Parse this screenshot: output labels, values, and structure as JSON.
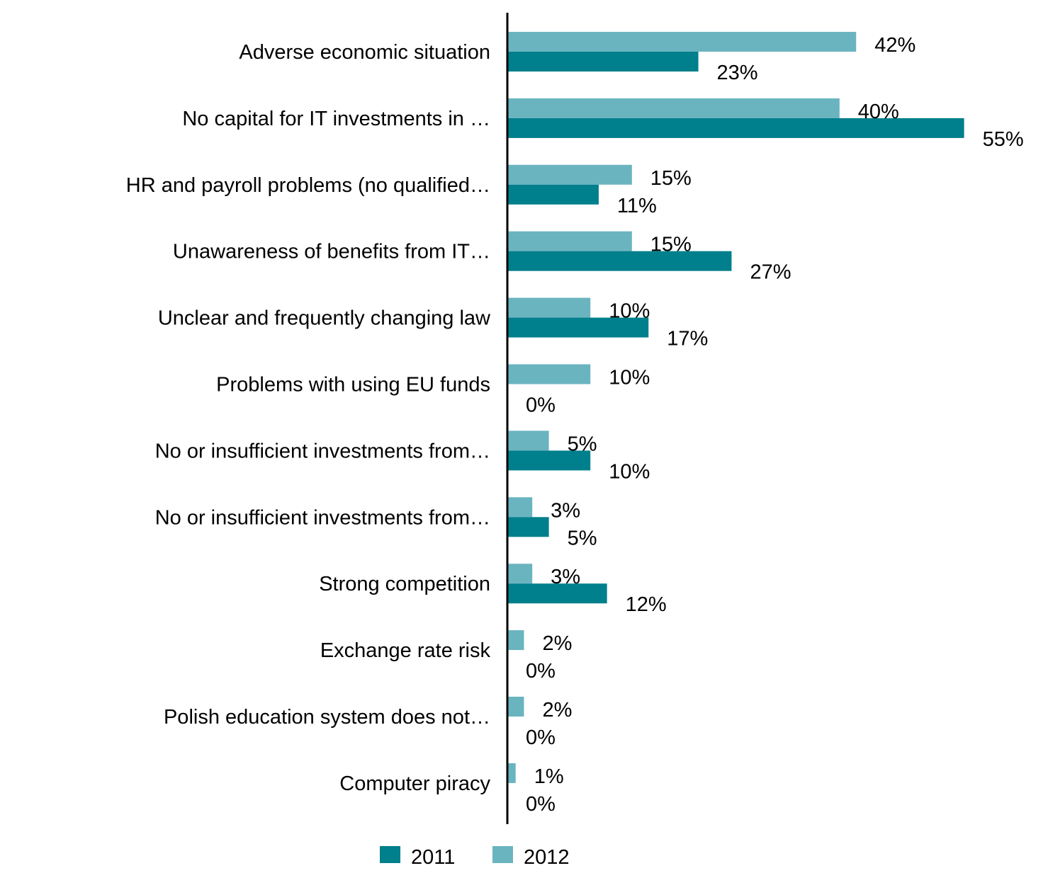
{
  "chart_data": {
    "type": "bar",
    "orientation": "horizontal",
    "categories": [
      "Adverse economic situation",
      "No capital for IT investments in …",
      "HR and payroll problems (no qualified…",
      "Unawareness of benefits from IT…",
      "Unclear and frequently changing law",
      "Problems with using EU funds",
      "No or insufficient investments from…",
      "No or insufficient investments from…",
      "Strong competition",
      "Exchange rate risk",
      "Polish education system does not…",
      "Computer piracy"
    ],
    "series": [
      {
        "name": "2012",
        "color": "#6ab4c0",
        "values": [
          42,
          40,
          15,
          15,
          10,
          10,
          5,
          3,
          3,
          2,
          2,
          1
        ],
        "labels": [
          "42%",
          "40%",
          "15%",
          "15%",
          "10%",
          "10%",
          "5%",
          "3%",
          "3%",
          "2%",
          "2%",
          "1%"
        ]
      },
      {
        "name": "2011",
        "color": "#007f8c",
        "values": [
          23,
          55,
          11,
          27,
          17,
          0,
          10,
          5,
          12,
          0,
          0,
          0
        ],
        "labels": [
          "23%",
          "55%",
          "11%",
          "27%",
          "17%",
          "0%",
          "10%",
          "5%",
          "12%",
          "0%",
          "0%",
          "0%"
        ]
      }
    ],
    "xlim": [
      0,
      55
    ],
    "grid": false,
    "legend": {
      "position": "bottom",
      "entries": [
        "2011",
        "2012"
      ]
    }
  }
}
